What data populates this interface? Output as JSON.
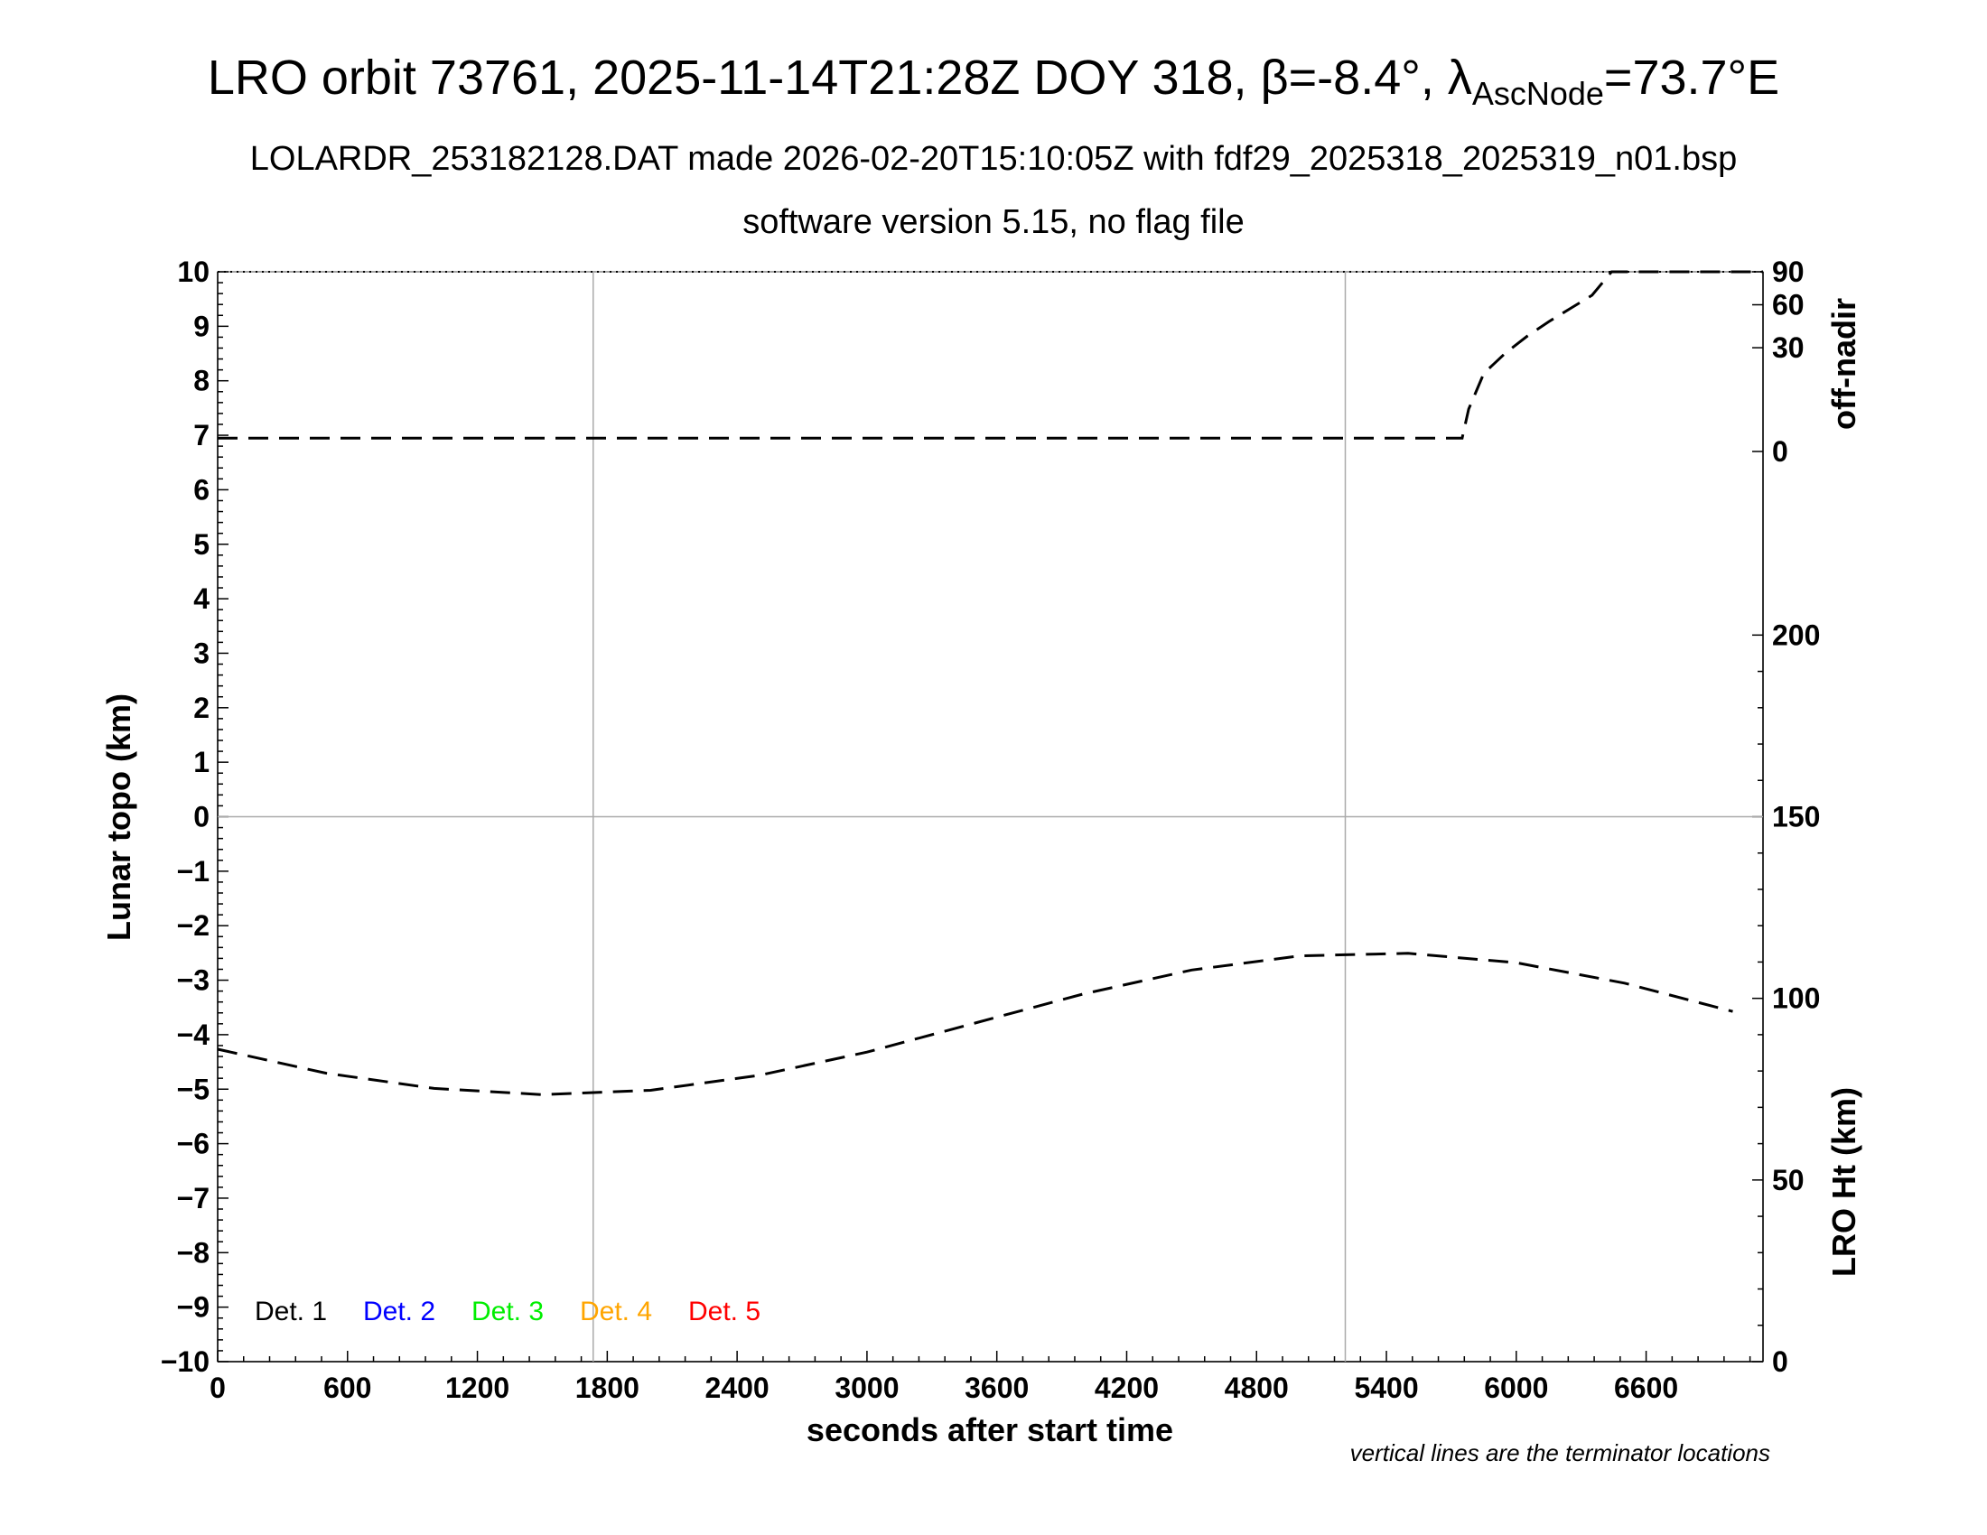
{
  "title": {
    "prefix": "LRO orbit 73761, 2025-11-14T21:28Z DOY 318, ",
    "beta_symbol": "β",
    "beta_value": "=-8.4°, ",
    "lambda_symbol": "λ",
    "lambda_subscript": "AscNode",
    "lambda_value": "=73.7°E"
  },
  "subtitle": "LOLARDR_253182128.DAT made 2026-02-20T15:10:05Z with fdf29_2025318_2025319_n01.bsp",
  "subtitle2": "software version 5.15, no flag file",
  "footnote": "vertical lines are the terminator locations",
  "chart_data": {
    "type": "line",
    "xlabel": "seconds after start time",
    "xlim": [
      0,
      7140
    ],
    "x_ticks": [
      0,
      600,
      1200,
      1800,
      2400,
      3000,
      3600,
      4200,
      4800,
      5400,
      6000,
      6600
    ],
    "x_tick_labels": [
      "0",
      "600",
      "1200",
      "1800",
      "2400",
      "3000",
      "3600",
      "4200",
      "4800",
      "5400",
      "6000",
      "6600"
    ],
    "y_left": {
      "label": "Lunar topo (km)",
      "lim": [
        -10,
        10
      ],
      "ticks": [
        10,
        9,
        8,
        7,
        6,
        5,
        4,
        3,
        2,
        1,
        0,
        -1,
        -2,
        -3,
        -4,
        -5,
        -6,
        -7,
        -8,
        -9,
        -10
      ],
      "tick_labels": [
        "10",
        "9",
        "8",
        "7",
        "6",
        "5",
        "4",
        "3",
        "2",
        "1",
        "0",
        "−1",
        "−2",
        "−3",
        "−4",
        "−5",
        "−6",
        "−7",
        "−8",
        "−9",
        "−10"
      ]
    },
    "y_right_top": {
      "label": "off-nadir",
      "ticks": [
        90,
        60,
        30,
        0
      ],
      "tick_labels": [
        "90",
        "60",
        "30",
        "0"
      ]
    },
    "y_right_bottom": {
      "label": "LRO Ht (km)",
      "lim": [
        0,
        300
      ],
      "ticks": [
        200,
        150,
        100,
        50,
        0
      ],
      "tick_labels": [
        "200",
        "150",
        "100",
        "50",
        "0"
      ]
    },
    "terminator_x": [
      1735,
      5210
    ],
    "zero_line_y": 0,
    "grid": false,
    "legend_position": "bottom-left",
    "legend": [
      {
        "label": "Det. 1",
        "color": "#000000"
      },
      {
        "label": "Det. 2",
        "color": "#0000ff"
      },
      {
        "label": "Det. 3",
        "color": "#00ee00"
      },
      {
        "label": "Det. 4",
        "color": "#ffa500"
      },
      {
        "label": "Det. 5",
        "color": "#ff0000"
      }
    ],
    "series": [
      {
        "axis": "off-nadir",
        "style": "dashed",
        "color": "#000000",
        "x": [
          0,
          1000,
          2000,
          3000,
          4000,
          5000,
          5650,
          5750,
          5780,
          5850,
          5950,
          6050,
          6150,
          6250,
          6350,
          6440,
          6600,
          6800,
          7000,
          7140
        ],
        "y": [
          0.5,
          0.5,
          0.5,
          0.5,
          0.5,
          0.5,
          0.5,
          0.5,
          5,
          17,
          27,
          37,
          47,
          57,
          68,
          90,
          90,
          90,
          90,
          90
        ]
      },
      {
        "axis": "LRO Ht (km)",
        "style": "dashed",
        "color": "#000000",
        "x": [
          0,
          500,
          1000,
          1500,
          2000,
          2500,
          3000,
          3500,
          4000,
          4500,
          5000,
          5500,
          6000,
          6500,
          7000
        ],
        "y": [
          86,
          79.4,
          75.2,
          73.5,
          74.7,
          78.8,
          85.2,
          93.2,
          101.2,
          107.8,
          111.7,
          112.4,
          109.8,
          104.2,
          96.4
        ]
      }
    ]
  }
}
